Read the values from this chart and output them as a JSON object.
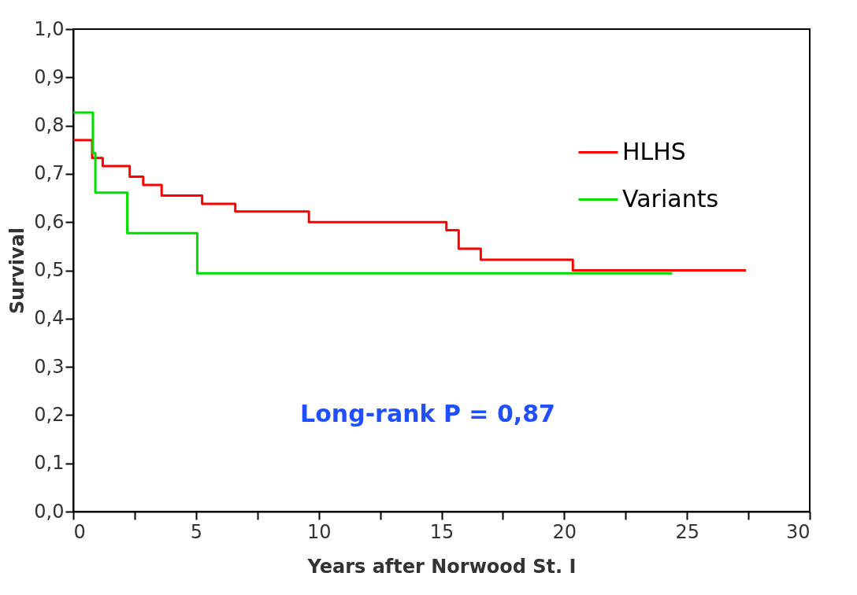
{
  "chart_data": {
    "type": "step",
    "xlabel": "Years after Norwood St. I",
    "ylabel": "Survival",
    "annotations": [
      "Long-rank P = 0,87"
    ],
    "series": [
      {
        "name": "HLHS",
        "color": "#ff0000",
        "x": [
          0,
          0.77,
          1.2,
          2.3,
          2.85,
          3.6,
          5.25,
          6.6,
          9.6,
          15.2,
          15.7,
          16.6,
          20.35,
          27.4
        ],
        "values": [
          0.77,
          0.733,
          0.716,
          0.694,
          0.677,
          0.655,
          0.638,
          0.622,
          0.6,
          0.583,
          0.545,
          0.522,
          0.5,
          0.5
        ]
      },
      {
        "name": "Variants",
        "color": "#00dd00",
        "x": [
          0,
          0.8,
          0.9,
          2.2,
          5.05,
          24.4
        ],
        "values": [
          0.827,
          0.743,
          0.661,
          0.577,
          0.494,
          0.494
        ]
      }
    ],
    "xlim": [
      0,
      30
    ],
    "xticks": [
      0,
      {
        "value": 2.5,
        "label": null
      },
      5,
      {
        "value": 7.5,
        "label": null
      },
      10,
      {
        "value": 12.5,
        "label": null
      },
      15,
      {
        "value": 17.5,
        "label": null
      },
      20,
      {
        "value": 22.5,
        "label": null
      },
      25,
      {
        "value": 27.5,
        "label": null
      },
      30
    ],
    "ylim": [
      0,
      1
    ],
    "yticks": [
      {
        "value": 0,
        "label": "0,0"
      },
      {
        "value": 0.1,
        "label": "0,1"
      },
      {
        "value": 0.2,
        "label": "0,2"
      },
      {
        "value": 0.3,
        "label": "0,3"
      },
      {
        "value": 0.4,
        "label": "0,4"
      },
      {
        "value": 0.5,
        "label": "0,5"
      },
      {
        "value": 0.6,
        "label": "0,6"
      },
      {
        "value": 0.7,
        "label": "0,7"
      },
      {
        "value": 0.8,
        "label": "0,8"
      },
      {
        "value": 0.9,
        "label": "0,9"
      },
      {
        "value": 1,
        "label": "1,0"
      }
    ],
    "grid": false,
    "legend": "top right",
    "line_style": "solid",
    "marker": "none"
  }
}
